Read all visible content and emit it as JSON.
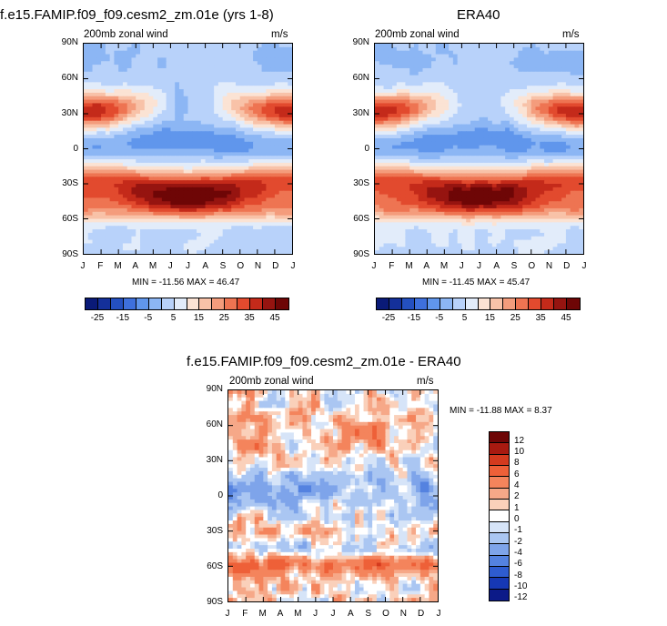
{
  "chart_data": [
    {
      "type": "heatmap",
      "title": "f.e15.FAMIP.f09_f09.cesm2_zm.01e (yrs 1-8)",
      "left_label": "200mb zonal wind",
      "right_label": "m/s",
      "x_ticks": [
        "J",
        "F",
        "M",
        "A",
        "M",
        "J",
        "J",
        "A",
        "S",
        "O",
        "N",
        "D",
        "J"
      ],
      "y_ticks": [
        "90N",
        "60N",
        "30N",
        "0",
        "30S",
        "60S",
        "90S"
      ],
      "min": -11.56,
      "max": 46.47,
      "minmax_text": "MIN = -11.56 MAX =  46.47",
      "colorbar_labels": [
        "-25",
        "-15",
        "-5",
        "5",
        "15",
        "25",
        "35",
        "45"
      ]
    },
    {
      "type": "heatmap",
      "title": "ERA40",
      "left_label": "200mb zonal wind",
      "right_label": "m/s",
      "x_ticks": [
        "J",
        "F",
        "M",
        "A",
        "M",
        "J",
        "J",
        "A",
        "S",
        "O",
        "N",
        "D",
        "J"
      ],
      "y_ticks": [
        "90N",
        "60N",
        "30N",
        "0",
        "30S",
        "60S",
        "90S"
      ],
      "min": -11.45,
      "max": 45.47,
      "minmax_text": "MIN = -11.45 MAX =  45.47",
      "colorbar_labels": [
        "-25",
        "-15",
        "-5",
        "5",
        "15",
        "25",
        "35",
        "45"
      ]
    },
    {
      "type": "heatmap",
      "title": "f.e15.FAMIP.f09_f09.cesm2_zm.01e - ERA40",
      "left_label": "200mb zonal wind",
      "right_label": "m/s",
      "x_ticks": [
        "J",
        "F",
        "M",
        "A",
        "M",
        "J",
        "J",
        "A",
        "S",
        "O",
        "N",
        "D",
        "J"
      ],
      "y_ticks": [
        "90N",
        "60N",
        "30N",
        "0",
        "30S",
        "60S",
        "90S"
      ],
      "min": -11.88,
      "max": 8.37,
      "minmax_text": "MIN = -11.88 MAX =   8.37",
      "colorbar_labels": [
        "12",
        "10",
        "8",
        "6",
        "4",
        "2",
        "1",
        "0",
        "-1",
        "-2",
        "-4",
        "-6",
        "-8",
        "-10",
        "-12"
      ]
    }
  ],
  "colors": {
    "wind_scale": [
      "#0a1a78",
      "#14309a",
      "#2450c0",
      "#3e70dc",
      "#6096ec",
      "#8cb6f4",
      "#b8d2fa",
      "#e2ecfa",
      "#fbe3d4",
      "#f8c2a8",
      "#f49c7c",
      "#ee7452",
      "#e24a2e",
      "#c42a1a",
      "#961410",
      "#6e0606"
    ],
    "diff_scale": [
      "#6e0606",
      "#a81a10",
      "#d43a1e",
      "#ee6038",
      "#f4845c",
      "#f6a888",
      "#fad0ba",
      "#ffffff",
      "#d6e4f8",
      "#aac6f2",
      "#7ea4ea",
      "#5482e0",
      "#2e5cd0",
      "#1638b4",
      "#0c1a88"
    ]
  }
}
